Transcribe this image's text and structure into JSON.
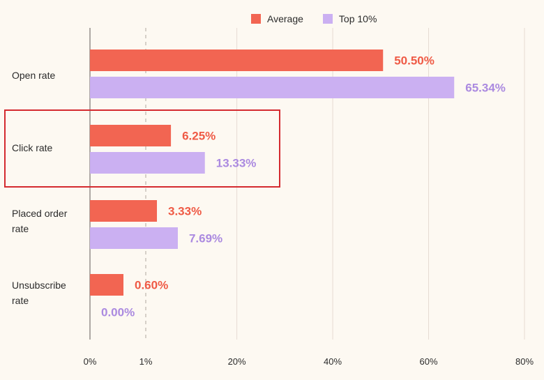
{
  "colors": {
    "average": "#f26552",
    "top10": "#cbb0f2",
    "average_text": "#ef5a45",
    "top10_text": "#ab8ae0"
  },
  "legend": [
    {
      "name": "Average",
      "color": "#f26552"
    },
    {
      "name": "Top 10%",
      "color": "#cbb0f2"
    }
  ],
  "categories": [
    {
      "label_lines": [
        "Open rate"
      ]
    },
    {
      "label_lines": [
        "Click rate"
      ]
    },
    {
      "label_lines": [
        "Placed order",
        "rate"
      ]
    },
    {
      "label_lines": [
        "Unsubscribe",
        "rate"
      ]
    }
  ],
  "chart_data": {
    "type": "bar",
    "orientation": "horizontal",
    "categories": [
      "Open rate",
      "Click rate",
      "Placed order rate",
      "Unsubscribe rate"
    ],
    "series": [
      {
        "name": "Average",
        "values": [
          50.5,
          6.25,
          3.33,
          0.6
        ],
        "labels": [
          "50.50%",
          "6.25%",
          "3.33%",
          "0.60%"
        ]
      },
      {
        "name": "Top 10%",
        "values": [
          65.34,
          13.33,
          7.69,
          0.0
        ],
        "labels": [
          "65.34%",
          "13.33%",
          "7.69%",
          "0.00%"
        ]
      }
    ],
    "xticks": [
      "0%",
      "1%",
      "20%",
      "40%",
      "60%",
      "80%"
    ],
    "xscale": "broken: 0-1% then 1-80%",
    "grid": "vertical",
    "legend_position": "top-right",
    "highlighted_category": "Click rate"
  }
}
